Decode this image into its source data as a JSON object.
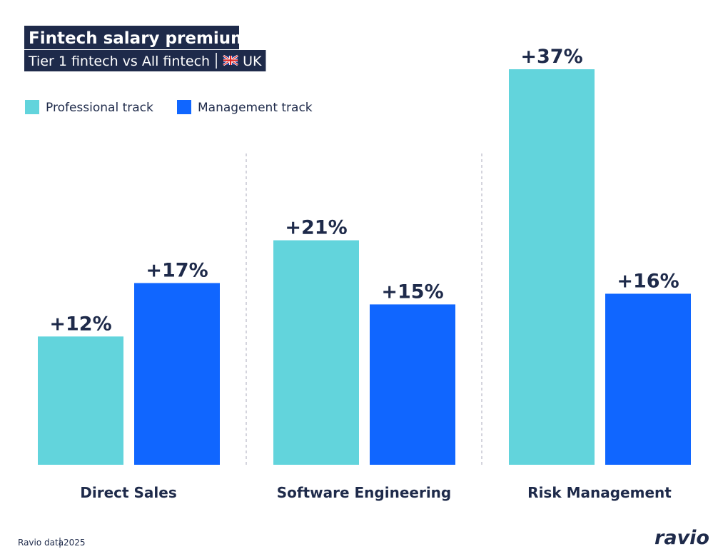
{
  "chart_data": {
    "type": "bar",
    "title": "Fintech salary premium",
    "subtitle": "Tier 1 fintech vs All fintech",
    "region": "UK",
    "categories": [
      "Direct Sales",
      "Software Engineering",
      "Risk Management"
    ],
    "series": [
      {
        "name": "Professional track",
        "color": "#62d4dc",
        "values": [
          12,
          21,
          37
        ],
        "value_labels": [
          "+12%",
          "+21%",
          "+37%"
        ]
      },
      {
        "name": "Management track",
        "color": "#1066ff",
        "values": [
          17,
          15,
          16
        ],
        "value_labels": [
          "+17%",
          "+15%",
          "+16%"
        ]
      }
    ],
    "legend": "top-left",
    "source": "Ravio data",
    "year": "2025",
    "brand": "ravio"
  }
}
